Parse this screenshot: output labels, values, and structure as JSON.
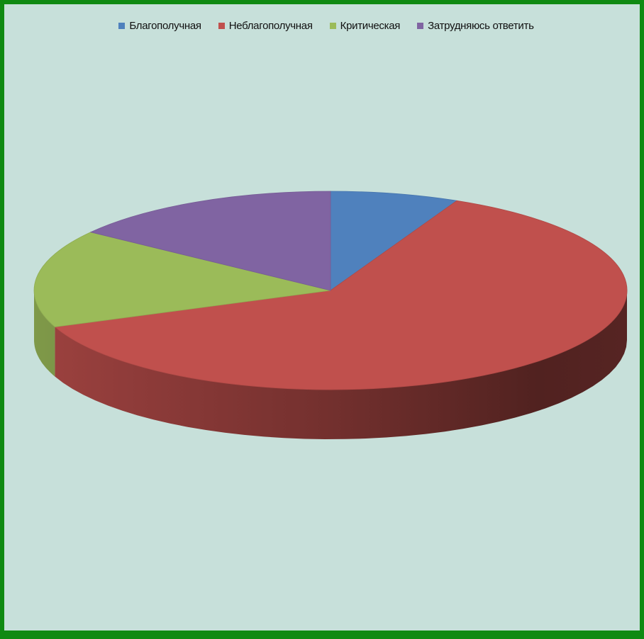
{
  "chart_data": {
    "type": "pie",
    "title": "",
    "legend_position": "top",
    "categories": [
      "Благополучная",
      "Неблагополучная",
      "Критическая",
      "Затрудняюсь ответить"
    ],
    "values": [
      7,
      62,
      16,
      15
    ],
    "colors": [
      "#4f81bd",
      "#c0504d",
      "#9bbb59",
      "#8064a2"
    ]
  }
}
